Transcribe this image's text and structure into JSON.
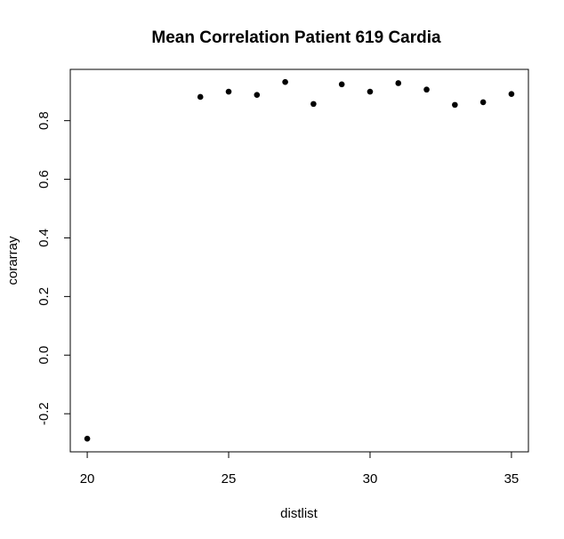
{
  "chart_data": {
    "type": "scatter",
    "title": "Mean Correlation Patient 619 Cardia",
    "xlabel": "distlist",
    "ylabel": "corarray",
    "xlim": [
      19.4,
      35.6
    ],
    "ylim": [
      -0.33,
      0.975
    ],
    "x_ticks": [
      20,
      25,
      30,
      35
    ],
    "x_tick_labels": [
      "20",
      "25",
      "30",
      "35"
    ],
    "y_ticks": [
      -0.2,
      0.0,
      0.2,
      0.4,
      0.6,
      0.8
    ],
    "y_tick_labels": [
      "-0.2",
      "0.0",
      "0.2",
      "0.4",
      "0.6",
      "0.8"
    ],
    "grid": false,
    "marker_color": "#000000",
    "points": [
      {
        "x": 20,
        "y": -0.285
      },
      {
        "x": 24,
        "y": 0.881
      },
      {
        "x": 25,
        "y": 0.899
      },
      {
        "x": 26,
        "y": 0.888
      },
      {
        "x": 27,
        "y": 0.932
      },
      {
        "x": 28,
        "y": 0.857
      },
      {
        "x": 29,
        "y": 0.924
      },
      {
        "x": 30,
        "y": 0.899
      },
      {
        "x": 31,
        "y": 0.928
      },
      {
        "x": 32,
        "y": 0.906
      },
      {
        "x": 33,
        "y": 0.854
      },
      {
        "x": 34,
        "y": 0.863
      },
      {
        "x": 35,
        "y": 0.891
      }
    ]
  }
}
